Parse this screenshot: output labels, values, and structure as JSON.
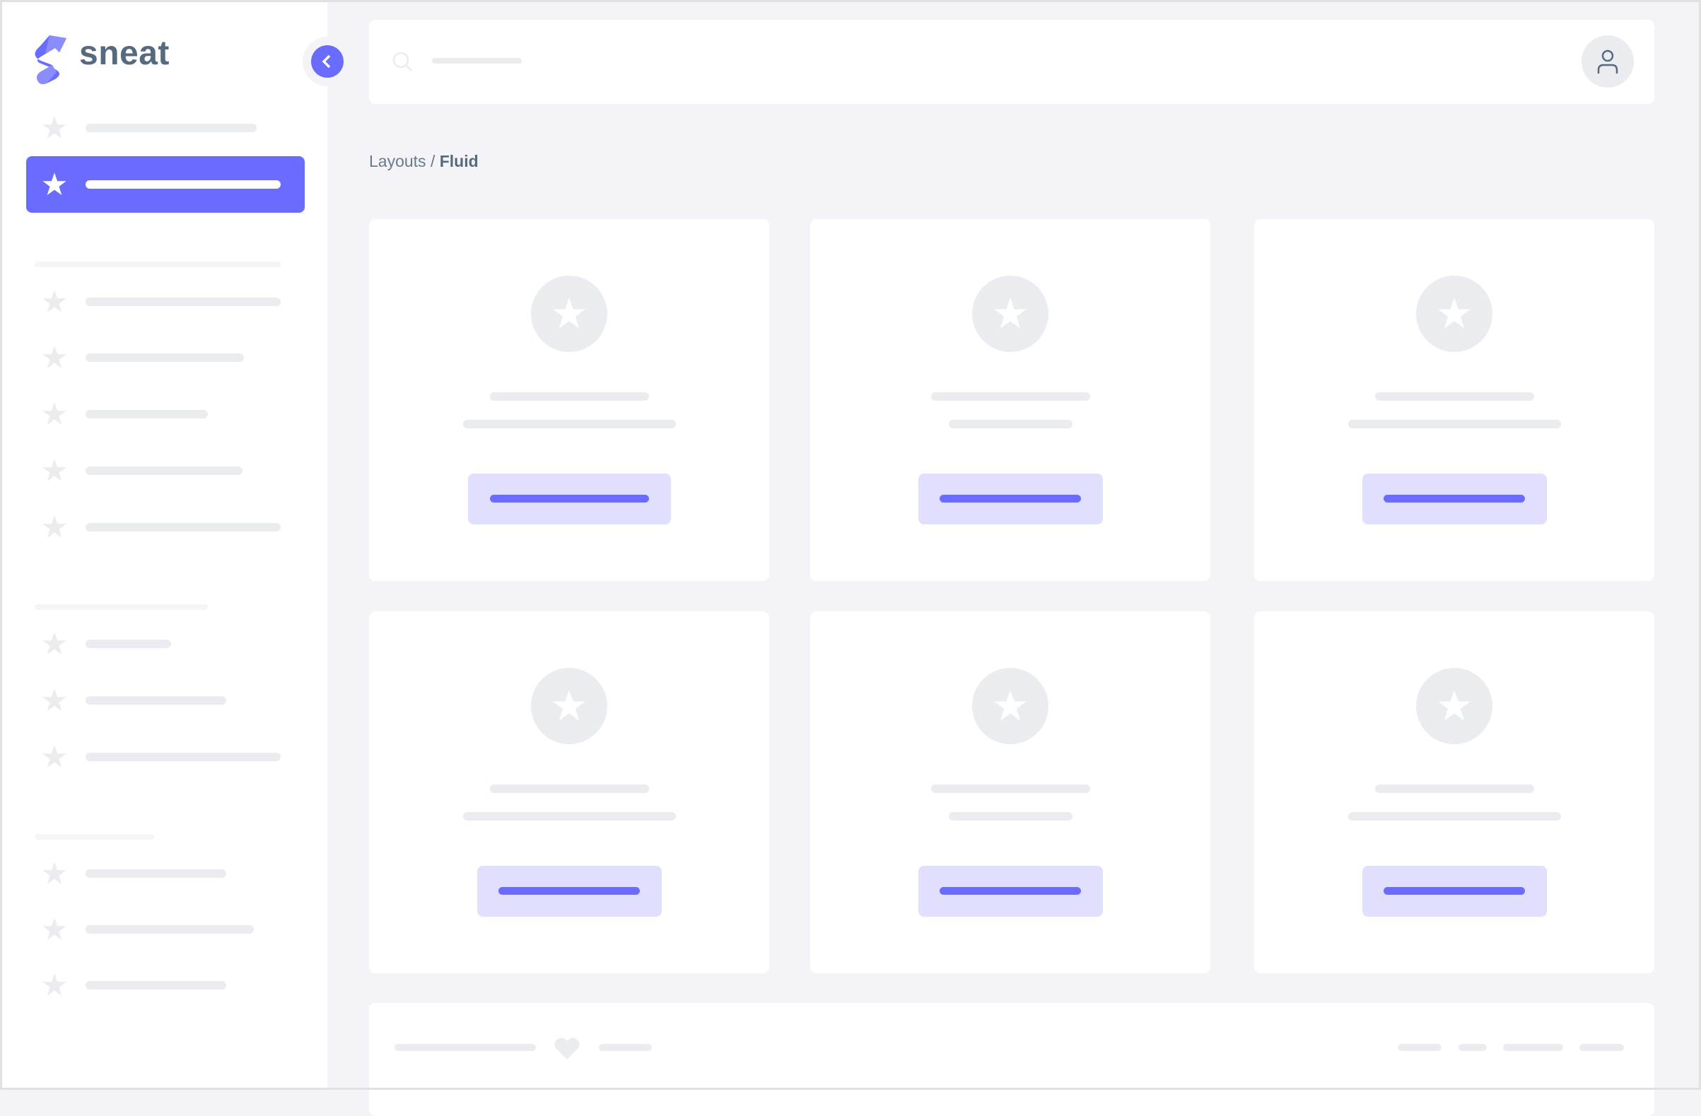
{
  "brand": {
    "name": "sneat",
    "logo_icon": "sneat-s-logo"
  },
  "breadcrumb": {
    "parent": "Layouts",
    "separator": " / ",
    "current": "Fluid"
  },
  "icons": {
    "nav": "star-icon",
    "toggle": "chevron-left-icon",
    "search": "search-icon",
    "user": "user-icon",
    "footer": "heart-icon"
  },
  "colors": {
    "primary": "#696cff",
    "primary_light": "#e0e0fe",
    "skeleton": "#ebecf0",
    "text": "#566a7f",
    "background": "#f4f4f8"
  }
}
